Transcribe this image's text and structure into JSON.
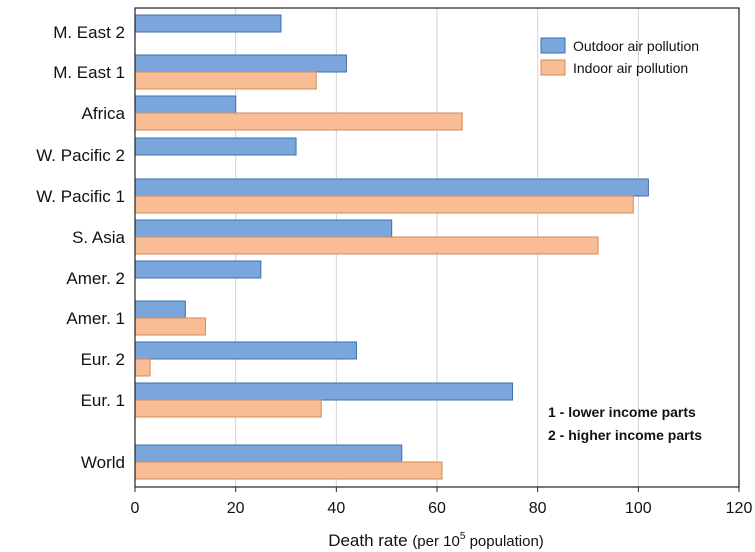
{
  "chart_data": {
    "type": "bar",
    "orientation": "horizontal",
    "categories": [
      "M. East 2",
      "M. East 1",
      "Africa",
      "W. Pacific 2",
      "W. Pacific 1",
      "S. Asia",
      "Amer. 2",
      "Amer. 1",
      "Eur. 2",
      "Eur. 1",
      "World"
    ],
    "series": [
      {
        "name": "Outdoor air pollution",
        "color": "#7aa6dc",
        "edge": "#3d6fb0",
        "values": [
          29,
          42,
          20,
          32,
          102,
          51,
          25,
          10,
          44,
          75,
          53
        ]
      },
      {
        "name": "Indoor air pollution",
        "color": "#f8bd94",
        "edge": "#d4895a",
        "values": [
          0,
          36,
          65,
          0,
          99,
          92,
          0,
          14,
          3,
          37,
          61
        ]
      }
    ],
    "xlim": [
      0,
      120
    ],
    "xticks": [
      0,
      20,
      40,
      60,
      80,
      100,
      120
    ],
    "xlabel_main": "Death rate",
    "xlabel_unit_prefix": "(per 10",
    "xlabel_unit_sup": "5",
    "xlabel_unit_suffix": " population)",
    "legend_position": "top-right",
    "grid": "vertical",
    "annotations": [
      "1 - lower income parts",
      "2 - higher income parts"
    ]
  }
}
